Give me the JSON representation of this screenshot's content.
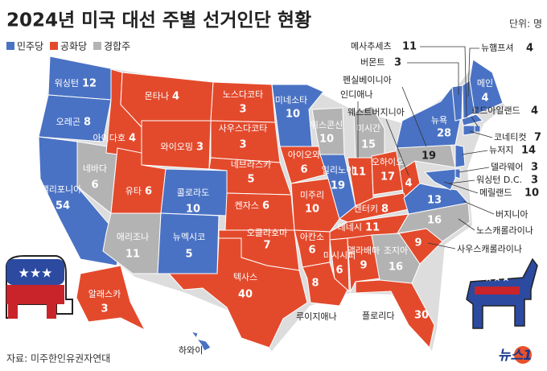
{
  "header": {
    "title": "2024년 미국 대선 주별 선거인단 현황",
    "unit": "단위: 명"
  },
  "legend": [
    {
      "name": "민주당",
      "color": "#4a72c4"
    },
    {
      "name": "공화당",
      "color": "#e34a2c"
    },
    {
      "name": "경합주",
      "color": "#b3b3b3"
    }
  ],
  "states": [
    {
      "name": "워싱턴",
      "votes": "12",
      "party": "민주당"
    },
    {
      "name": "오레곤",
      "votes": "8",
      "party": "민주당"
    },
    {
      "name": "캘리포니아",
      "votes": "54",
      "party": "민주당"
    },
    {
      "name": "네바다",
      "votes": "6",
      "party": "경합주"
    },
    {
      "name": "아이다호",
      "votes": "4",
      "party": "공화당"
    },
    {
      "name": "몬타나",
      "votes": "4",
      "party": "공화당"
    },
    {
      "name": "와이오밍",
      "votes": "3",
      "party": "공화당"
    },
    {
      "name": "유타",
      "votes": "6",
      "party": "공화당"
    },
    {
      "name": "애리조나",
      "votes": "11",
      "party": "경합주"
    },
    {
      "name": "콜로라도",
      "votes": "10",
      "party": "민주당"
    },
    {
      "name": "뉴멕시코",
      "votes": "5",
      "party": "민주당"
    },
    {
      "name": "노스다코타",
      "votes": "3",
      "party": "공화당"
    },
    {
      "name": "사우스다코타",
      "votes": "3",
      "party": "공화당"
    },
    {
      "name": "네브라스카",
      "votes": "5",
      "party": "공화당"
    },
    {
      "name": "켄자스",
      "votes": "6",
      "party": "공화당"
    },
    {
      "name": "오클라호마",
      "votes": "7",
      "party": "공화당"
    },
    {
      "name": "텍사스",
      "votes": "40",
      "party": "공화당"
    },
    {
      "name": "미네소타",
      "votes": "10",
      "party": "민주당"
    },
    {
      "name": "아이오와",
      "votes": "6",
      "party": "공화당"
    },
    {
      "name": "미주리",
      "votes": "10",
      "party": "공화당"
    },
    {
      "name": "아칸소",
      "votes": "6",
      "party": "공화당"
    },
    {
      "name": "루이지애나",
      "votes": "8",
      "party": "공화당"
    },
    {
      "name": "위스콘신",
      "votes": "10",
      "party": "경합주"
    },
    {
      "name": "일리노이",
      "votes": "19",
      "party": "민주당"
    },
    {
      "name": "미시간",
      "votes": "15",
      "party": "경합주"
    },
    {
      "name": "인디애나",
      "votes": "11",
      "party": "공화당"
    },
    {
      "name": "오하이오",
      "votes": "17",
      "party": "공화당"
    },
    {
      "name": "웨스트버지니아",
      "votes": "4",
      "party": "공화당"
    },
    {
      "name": "켄터키",
      "votes": "8",
      "party": "공화당"
    },
    {
      "name": "테네시",
      "votes": "11",
      "party": "공화당"
    },
    {
      "name": "미시시피",
      "votes": "6",
      "party": "공화당"
    },
    {
      "name": "앨라배마",
      "votes": "9",
      "party": "공화당"
    },
    {
      "name": "조지아",
      "votes": "16",
      "party": "경합주"
    },
    {
      "name": "플로리다",
      "votes": "30",
      "party": "공화당"
    },
    {
      "name": "사우스캐롤라이나",
      "votes": "9",
      "party": "공화당"
    },
    {
      "name": "노스캐롤라이나",
      "votes": "16",
      "party": "경합주"
    },
    {
      "name": "버지니아",
      "votes": "13",
      "party": "민주당"
    },
    {
      "name": "펜실베이니아",
      "votes": "19",
      "party": "경합주"
    },
    {
      "name": "뉴욕",
      "votes": "28",
      "party": "민주당"
    },
    {
      "name": "메인",
      "votes": "4",
      "party": "민주당"
    },
    {
      "name": "버몬트",
      "votes": "3",
      "party": "민주당"
    },
    {
      "name": "뉴햄프셔",
      "votes": "4",
      "party": "민주당"
    },
    {
      "name": "메사추세츠",
      "votes": "11",
      "party": "민주당"
    },
    {
      "name": "로드아일랜드",
      "votes": "4",
      "party": "민주당"
    },
    {
      "name": "코네티컷",
      "votes": "7",
      "party": "민주당"
    },
    {
      "name": "뉴저지",
      "votes": "14",
      "party": "민주당"
    },
    {
      "name": "델라웨어",
      "votes": "3",
      "party": "민주당"
    },
    {
      "name": "워싱턴 D.C.",
      "votes": "3",
      "party": "민주당"
    },
    {
      "name": "메릴랜드",
      "votes": "10",
      "party": "민주당"
    },
    {
      "name": "알래스카",
      "votes": "3",
      "party": "공화당"
    },
    {
      "name": "하와이",
      "party": "민주당"
    }
  ],
  "footer": {
    "source": "자료: 미주한인유권자연대",
    "logo": "뉴스1"
  }
}
